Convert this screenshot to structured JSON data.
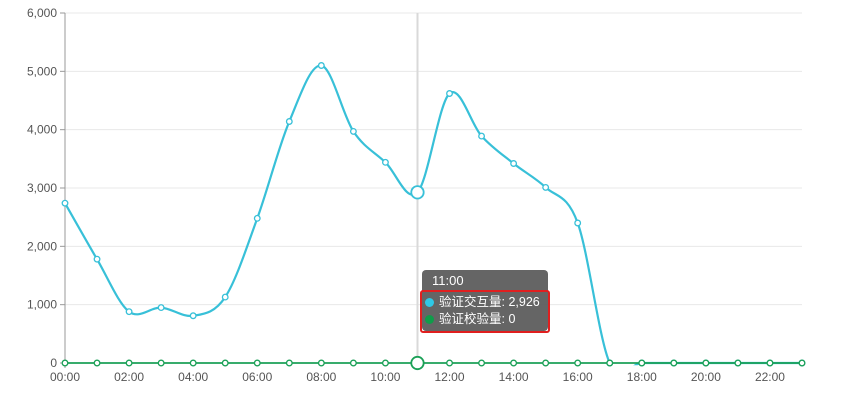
{
  "chart_data": {
    "type": "line",
    "title": "",
    "x": [
      "00:00",
      "01:00",
      "02:00",
      "03:00",
      "04:00",
      "05:00",
      "06:00",
      "07:00",
      "08:00",
      "09:00",
      "10:00",
      "11:00",
      "12:00",
      "13:00",
      "14:00",
      "15:00",
      "16:00",
      "17:00",
      "18:00",
      "19:00",
      "20:00",
      "21:00",
      "22:00",
      "23:00"
    ],
    "x_axis_labels_shown": [
      "00:00",
      "02:00",
      "04:00",
      "06:00",
      "08:00",
      "10:00",
      "12:00",
      "14:00",
      "16:00",
      "18:00",
      "20:00",
      "22:00"
    ],
    "y_ticks": [
      {
        "value": 0,
        "label": "0"
      },
      {
        "value": 1000,
        "label": "1,000"
      },
      {
        "value": 2000,
        "label": "2,000"
      },
      {
        "value": 3000,
        "label": "3,000"
      },
      {
        "value": 4000,
        "label": "4,000"
      },
      {
        "value": 5000,
        "label": "5,000"
      },
      {
        "value": 6000,
        "label": "6,000"
      }
    ],
    "ylim": [
      0,
      6000
    ],
    "grid": true,
    "legend_position": "none",
    "series": [
      {
        "name": "验证交互量",
        "color": "#38c0d8",
        "smooth": true,
        "values": [
          2740,
          1780,
          880,
          950,
          810,
          1130,
          2480,
          4140,
          5100,
          3970,
          3440,
          2926,
          4620,
          3890,
          3420,
          3010,
          2400,
          0,
          0,
          0,
          0,
          0,
          0,
          0
        ]
      },
      {
        "name": "验证校验量",
        "color": "#1ba057",
        "smooth": false,
        "values": [
          0,
          0,
          0,
          0,
          0,
          0,
          0,
          0,
          0,
          0,
          0,
          0,
          0,
          0,
          0,
          0,
          0,
          0,
          0,
          0,
          0,
          0,
          0,
          0
        ]
      }
    ],
    "highlight": {
      "x": "11:00",
      "x_index": 11
    }
  },
  "tooltip": {
    "title": "11:00",
    "items": [
      {
        "label": "验证交互量",
        "value": "2,926",
        "text": "验证交互量: 2,926",
        "color": "#2ec9e6"
      },
      {
        "label": "验证校验量",
        "value": "0",
        "text": "验证校验量: 0",
        "color": "#0f9d4a"
      }
    ],
    "highlight_border_color": "#e01f1f"
  },
  "colors": {
    "grid_line": "#e8e8e8",
    "axis_line": "#999999",
    "axis_label": "#555555",
    "highlight_line": "#d9d9d9",
    "background": "#ffffff"
  }
}
